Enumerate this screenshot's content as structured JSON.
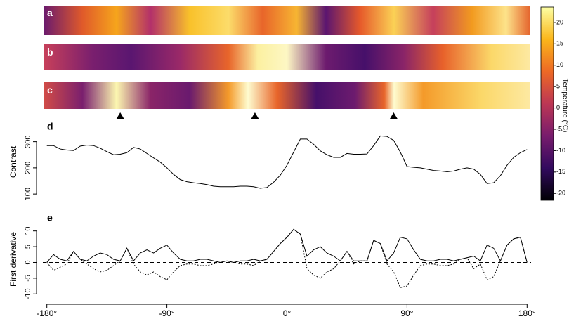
{
  "images": [
    {
      "label": "a"
    },
    {
      "label": "b"
    },
    {
      "label": "c"
    }
  ],
  "chart_data": [
    {
      "type": "line",
      "label": "d",
      "ylabel": "Contrast",
      "x": [
        -180,
        -175,
        -170,
        -165,
        -160,
        -155,
        -150,
        -145,
        -140,
        -135,
        -130,
        -125,
        -120,
        -115,
        -110,
        -105,
        -100,
        -95,
        -90,
        -85,
        -80,
        -75,
        -70,
        -65,
        -60,
        -55,
        -50,
        -45,
        -40,
        -35,
        -30,
        -25,
        -20,
        -15,
        -10,
        -5,
        0,
        5,
        10,
        15,
        20,
        25,
        30,
        35,
        40,
        45,
        50,
        55,
        60,
        65,
        70,
        75,
        80,
        85,
        90,
        95,
        100,
        105,
        110,
        115,
        120,
        125,
        130,
        135,
        140,
        145,
        150,
        155,
        160,
        165,
        170,
        175,
        180
      ],
      "series": [
        {
          "color": "#000000",
          "style": "solid",
          "values": [
            285,
            285,
            272,
            268,
            266,
            283,
            287,
            285,
            275,
            262,
            250,
            252,
            258,
            278,
            272,
            255,
            238,
            222,
            200,
            175,
            155,
            147,
            143,
            140,
            136,
            130,
            128,
            128,
            128,
            130,
            130,
            128,
            122,
            125,
            145,
            172,
            210,
            260,
            310,
            310,
            290,
            265,
            250,
            240,
            240,
            255,
            252,
            252,
            253,
            285,
            322,
            320,
            305,
            260,
            205,
            202,
            200,
            195,
            190,
            188,
            185,
            188,
            195,
            200,
            195,
            175,
            140,
            143,
            170,
            210,
            240,
            258,
            270
          ]
        }
      ],
      "xlim": [
        -183,
        183
      ],
      "ylim": [
        95,
        350
      ],
      "yticks": [
        100,
        200,
        300
      ],
      "markers": [
        -125,
        -24,
        80
      ]
    },
    {
      "type": "line",
      "label": "e",
      "ylabel": "First derivative",
      "x": [
        -180,
        -175,
        -170,
        -165,
        -160,
        -155,
        -150,
        -145,
        -140,
        -135,
        -130,
        -125,
        -120,
        -115,
        -110,
        -105,
        -100,
        -95,
        -90,
        -85,
        -80,
        -75,
        -70,
        -65,
        -60,
        -55,
        -50,
        -45,
        -40,
        -35,
        -30,
        -25,
        -20,
        -15,
        -10,
        -5,
        0,
        5,
        10,
        15,
        20,
        25,
        30,
        35,
        40,
        45,
        50,
        55,
        60,
        65,
        70,
        75,
        80,
        85,
        90,
        95,
        100,
        105,
        110,
        115,
        120,
        125,
        130,
        135,
        140,
        145,
        150,
        155,
        160,
        165,
        170,
        175,
        180
      ],
      "series": [
        {
          "color": "#000000",
          "style": "solid",
          "values": [
            0,
            2.5,
            1,
            0.5,
            3.5,
            1,
            0.5,
            2,
            3,
            2.5,
            1,
            0.5,
            4.5,
            0.5,
            3,
            4,
            3,
            4.5,
            5.5,
            3,
            1,
            0.5,
            0.5,
            1,
            1,
            0.5,
            0,
            0.5,
            0,
            0.5,
            0.5,
            1,
            0.5,
            1,
            3.5,
            6,
            8,
            10.5,
            9,
            2,
            4,
            5,
            3,
            2,
            0.5,
            3.5,
            0.5,
            0.5,
            0.5,
            7,
            6,
            0.5,
            3,
            8,
            7.5,
            4,
            1,
            0.5,
            0.5,
            1,
            1,
            0.5,
            1,
            1.5,
            2,
            0.5,
            5.5,
            4.5,
            0.5,
            5.5,
            7.5,
            8,
            0
          ]
        },
        {
          "color": "#000000",
          "style": "dotted",
          "values": [
            0,
            -2.5,
            -1.5,
            -0.5,
            3.5,
            1,
            -0.5,
            -2,
            -3,
            -2.5,
            -1,
            0.5,
            4.5,
            -0.5,
            -3,
            -4,
            -3,
            -4.5,
            -5.5,
            -3,
            -1,
            -0.5,
            -0.5,
            -1,
            -1,
            -0.5,
            0,
            0.5,
            0,
            -0.5,
            -0.5,
            -1,
            0.5,
            1,
            3.5,
            6,
            8,
            10.5,
            9,
            -2,
            -4,
            -5,
            -3,
            -2,
            0.5,
            3.5,
            -0.5,
            0.5,
            0.5,
            7,
            6,
            -0.5,
            -3,
            -8,
            -7.5,
            -4,
            -1,
            -0.5,
            -0.5,
            -1,
            -1,
            -0.5,
            1,
            1.5,
            -2,
            -0.5,
            -5.5,
            -4.5,
            0.5,
            5.5,
            7.5,
            8,
            0
          ]
        }
      ],
      "xlim": [
        -183,
        183
      ],
      "ylim": [
        -11.5,
        13.5
      ],
      "yticks": [
        -10,
        -5,
        0,
        5,
        10
      ],
      "hline": 0,
      "xticks": [
        {
          "value": -180,
          "label": "-180°"
        },
        {
          "value": -90,
          "label": "-90°"
        },
        {
          "value": 0,
          "label": "0°"
        },
        {
          "value": 90,
          "label": "90°"
        },
        {
          "value": 180,
          "label": "180°"
        }
      ]
    },
    {
      "type": "colorbar",
      "title": "Temperature (°C)",
      "ylim": [
        -21.6,
        23.6
      ],
      "yticks": [
        -20,
        -15,
        -10,
        -5,
        0,
        5,
        10,
        15,
        20
      ],
      "colors": [
        "#000004",
        "#320a5e",
        "#781c6d",
        "#bc3754",
        "#ed6925",
        "#fbb61a",
        "#fcffa4"
      ]
    }
  ]
}
